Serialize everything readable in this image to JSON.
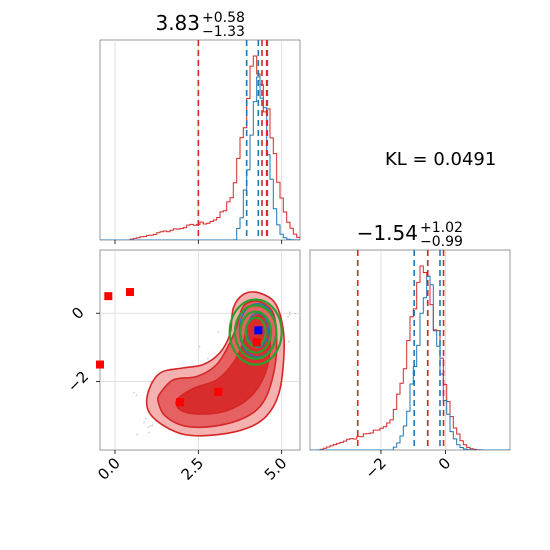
{
  "kl_label": "KL = 0.0491",
  "colors": {
    "primary": "#d62728",
    "secondary": "#1f77b4",
    "contour_green": "#2ca02c",
    "axis": "#808080",
    "grid": "#d9d9d9",
    "marker_red": "#ff0000",
    "marker_blue": "#0000ff"
  },
  "chart_data": [
    {
      "type": "histogram",
      "panel": "top-left",
      "title_main": "3.83",
      "title_sup": "+0.58",
      "title_sub": "−1.33",
      "xlim": [
        -0.45,
        5.55
      ],
      "x_ticks": [
        0.0,
        2.5,
        5.0
      ],
      "grid": true,
      "quantiles_primary": [
        2.5,
        4.41,
        4.55
      ],
      "quantiles_secondary": [
        3.95,
        4.3,
        4.57
      ],
      "series": [
        {
          "color": "primary",
          "peak": 4.33,
          "sd": 0.42,
          "tail_start": 0.4,
          "tail_weight": 0.32,
          "jitter": 0.12
        },
        {
          "color": "secondary",
          "peak": 4.32,
          "sd": 0.27,
          "tail_start": 3.6,
          "tail_weight": 0.0,
          "jitter": 0.1
        }
      ]
    },
    {
      "type": "histogram",
      "panel": "bottom-right",
      "title_main": "−1.54",
      "title_sup": "+1.02",
      "title_sub": "−0.99",
      "xlim": [
        -4.2,
        2.0
      ],
      "x_ticks": [
        -2,
        0
      ],
      "x_tick_labels": [
        "−2",
        "0"
      ],
      "grid": true,
      "quantiles_primary": [
        -2.72,
        -0.55,
        -0.06
      ],
      "quantiles_secondary": [
        -0.97,
        -0.55,
        -0.17
      ],
      "series": [
        {
          "color": "primary",
          "peak": -0.58,
          "sd": 0.45,
          "tail_start": -3.9,
          "tail_weight": 0.38,
          "jitter": 0.12
        },
        {
          "color": "secondary",
          "peak": -0.55,
          "sd": 0.36,
          "tail_start": -1.6,
          "tail_weight": 0.0,
          "jitter": 0.1
        }
      ]
    },
    {
      "type": "contour",
      "panel": "bottom-left",
      "xlim": [
        -0.45,
        5.55
      ],
      "ylim": [
        -4.0,
        1.85
      ],
      "x_ticks": [
        0.0,
        2.5,
        5.0
      ],
      "x_tick_labels": [
        "0.0",
        "2.5",
        "5.0"
      ],
      "y_ticks": [
        0,
        -2
      ],
      "y_tick_labels": [
        "0",
        "−2"
      ],
      "grid": true,
      "red_contours": [
        {
          "level": "outer",
          "points": [
            [
              1.0,
              -2.3
            ],
            [
              1.35,
              -1.75
            ],
            [
              2.05,
              -1.6
            ],
            [
              2.65,
              -1.5
            ],
            [
              3.15,
              -1.15
            ],
            [
              3.45,
              -0.6
            ],
            [
              3.55,
              0.15
            ],
            [
              3.85,
              0.55
            ],
            [
              4.3,
              0.6
            ],
            [
              4.8,
              0.3
            ],
            [
              5.05,
              -0.5
            ],
            [
              5.05,
              -1.5
            ],
            [
              4.9,
              -2.4
            ],
            [
              4.55,
              -3.0
            ],
            [
              4.0,
              -3.35
            ],
            [
              3.1,
              -3.55
            ],
            [
              2.1,
              -3.55
            ],
            [
              1.4,
              -3.25
            ],
            [
              1.0,
              -2.85
            ]
          ]
        },
        {
          "level": "middle",
          "points": [
            [
              1.35,
              -2.35
            ],
            [
              1.75,
              -1.95
            ],
            [
              2.45,
              -1.85
            ],
            [
              3.0,
              -1.55
            ],
            [
              3.35,
              -1.05
            ],
            [
              3.65,
              -0.4
            ],
            [
              3.85,
              0.2
            ],
            [
              4.3,
              0.35
            ],
            [
              4.75,
              0.0
            ],
            [
              4.85,
              -0.9
            ],
            [
              4.75,
              -1.8
            ],
            [
              4.45,
              -2.6
            ],
            [
              3.9,
              -3.05
            ],
            [
              3.0,
              -3.3
            ],
            [
              2.1,
              -3.3
            ],
            [
              1.5,
              -3.0
            ],
            [
              1.3,
              -2.6
            ]
          ]
        },
        {
          "level": "inner",
          "points": [
            [
              1.85,
              -2.55
            ],
            [
              2.35,
              -2.2
            ],
            [
              3.05,
              -1.95
            ],
            [
              3.55,
              -1.45
            ],
            [
              3.85,
              -0.85
            ],
            [
              4.0,
              -0.25
            ],
            [
              4.35,
              -0.05
            ],
            [
              4.6,
              -0.35
            ],
            [
              4.65,
              -1.1
            ],
            [
              4.45,
              -1.9
            ],
            [
              4.0,
              -2.5
            ],
            [
              3.35,
              -2.85
            ],
            [
              2.6,
              -2.95
            ],
            [
              2.0,
              -2.85
            ]
          ]
        }
      ],
      "green_ellipses": [
        {
          "cx": 4.22,
          "cy": -0.55,
          "rx": 0.78,
          "ry": 0.95
        },
        {
          "cx": 4.22,
          "cy": -0.55,
          "rx": 0.62,
          "ry": 0.78
        },
        {
          "cx": 4.22,
          "cy": -0.55,
          "rx": 0.46,
          "ry": 0.6
        },
        {
          "cx": 4.22,
          "cy": -0.55,
          "rx": 0.3,
          "ry": 0.42
        }
      ],
      "blue_ellipses": [
        {
          "cx": 4.28,
          "cy": -0.5,
          "rx": 0.55,
          "ry": 0.78
        },
        {
          "cx": 4.28,
          "cy": -0.5,
          "rx": 0.32,
          "ry": 0.5
        }
      ],
      "red_markers": [
        {
          "x": -0.45,
          "y": -1.5
        },
        {
          "x": -0.2,
          "y": 0.5
        },
        {
          "x": 0.45,
          "y": 0.62
        },
        {
          "x": 1.95,
          "y": -2.6
        },
        {
          "x": 3.1,
          "y": -2.3
        },
        {
          "x": 4.25,
          "y": -0.85
        }
      ],
      "blue_markers": [
        {
          "x": 4.3,
          "y": -0.5
        }
      ]
    }
  ]
}
